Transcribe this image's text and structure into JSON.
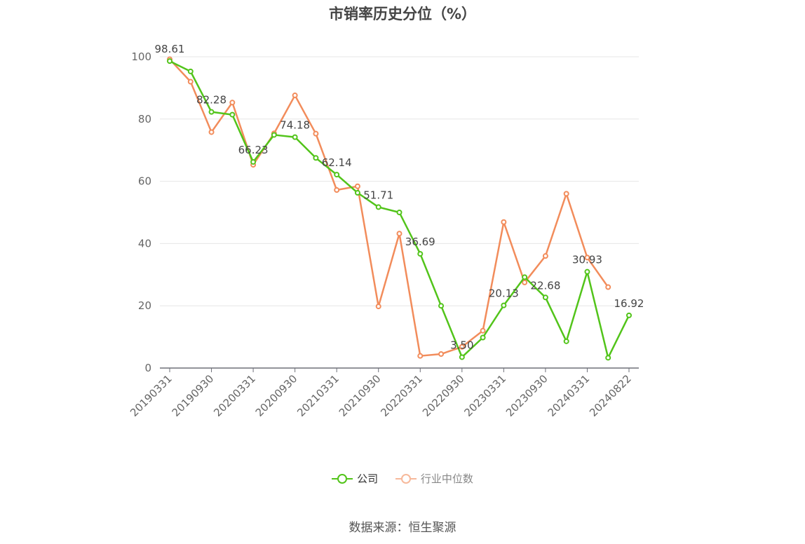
{
  "title": "市销率历史分位（%）",
  "source": "数据来源：恒生聚源",
  "chart_data": {
    "type": "line",
    "title": "市销率历史分位（%）",
    "ylim": [
      0,
      100
    ],
    "yticks": [
      0,
      20,
      40,
      60,
      80,
      100
    ],
    "grid": true,
    "legend_position": "bottom",
    "x_tick_labels": [
      "20190331",
      "20190930",
      "20200331",
      "20200930",
      "20210331",
      "20210930",
      "20220331",
      "20220930",
      "20230331",
      "20230930",
      "20240331",
      "20240822"
    ],
    "x_points": 23,
    "series": [
      {
        "name": "公司",
        "color": "#52c41a",
        "values": [
          98.61,
          95.3,
          82.28,
          81.4,
          66.23,
          74.9,
          74.18,
          67.5,
          62.14,
          56.3,
          51.71,
          50.0,
          36.69,
          20.0,
          3.5,
          9.8,
          20.13,
          29.2,
          22.68,
          8.6,
          30.93,
          3.3,
          16.92
        ],
        "labeled_points": [
          [
            0,
            "98.61"
          ],
          [
            2,
            "82.28"
          ],
          [
            4,
            "66.23"
          ],
          [
            6,
            "74.18"
          ],
          [
            8,
            "62.14"
          ],
          [
            10,
            "51.71"
          ],
          [
            12,
            "36.69"
          ],
          [
            14,
            "3.50"
          ],
          [
            16,
            "20.13"
          ],
          [
            18,
            "22.68"
          ],
          [
            20,
            "30.93"
          ],
          [
            22,
            "16.92"
          ]
        ]
      },
      {
        "name": "行业中位数",
        "color": "#f28c5b",
        "values": [
          99.2,
          92.0,
          75.8,
          85.3,
          65.3,
          75.4,
          87.6,
          75.3,
          57.2,
          58.4,
          19.8,
          43.2,
          3.9,
          4.5,
          6.8,
          12.0,
          46.9,
          27.5,
          36.0,
          56.0,
          35.5,
          26.0,
          null
        ]
      }
    ]
  }
}
